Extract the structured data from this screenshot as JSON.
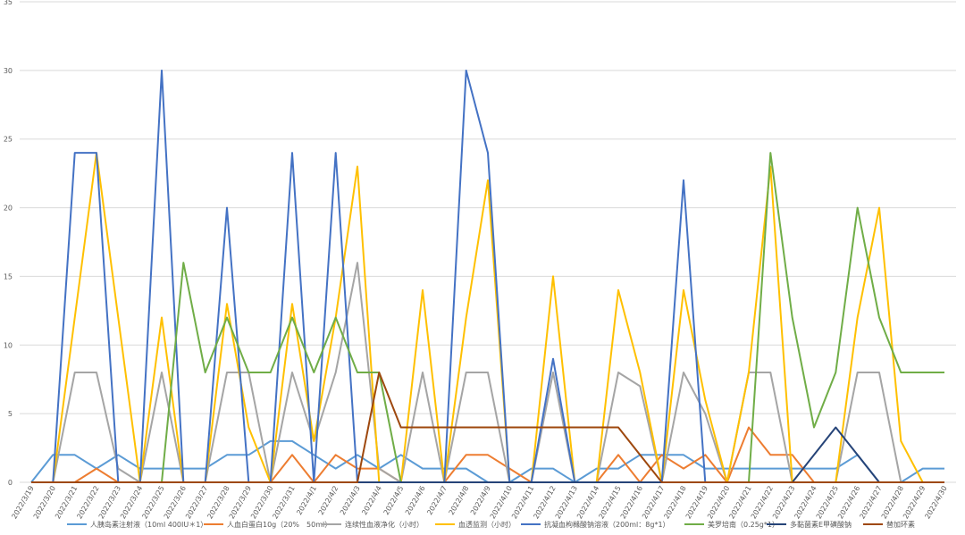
{
  "chart_data": {
    "type": "line",
    "categories": [
      "2022/3/19",
      "2022/3/20",
      "2022/3/21",
      "2022/3/22",
      "2022/3/23",
      "2022/3/24",
      "2022/3/25",
      "2022/3/26",
      "2022/3/27",
      "2022/3/28",
      "2022/3/29",
      "2022/3/30",
      "2022/3/31",
      "2022/4/1",
      "2022/4/2",
      "2022/4/3",
      "2022/4/4",
      "2022/4/5",
      "2022/4/6",
      "2022/4/7",
      "2022/4/8",
      "2022/4/9",
      "2022/4/10",
      "2022/4/11",
      "2022/4/12",
      "2022/4/13",
      "2022/4/14",
      "2022/4/15",
      "2022/4/16",
      "2022/4/17",
      "2022/4/18",
      "2022/4/19",
      "2022/4/20",
      "2022/4/21",
      "2022/4/22",
      "2022/4/23",
      "2022/4/24",
      "2022/4/25",
      "2022/4/26",
      "2022/4/27",
      "2022/4/28",
      "2022/4/29",
      "2022/4/30"
    ],
    "ylim": [
      0,
      35
    ],
    "yticks": [
      0,
      5,
      10,
      15,
      20,
      25,
      30,
      35
    ],
    "grid": true,
    "series": [
      {
        "name": "人胰岛素注射液（10ml 400IU＊1）",
        "color": "#5b9bd5",
        "values": [
          0,
          2,
          2,
          1,
          2,
          1,
          1,
          1,
          1,
          2,
          2,
          3,
          3,
          2,
          1,
          2,
          1,
          2,
          1,
          1,
          1,
          0,
          0,
          1,
          1,
          0,
          1,
          1,
          2,
          2,
          2,
          1,
          1,
          1,
          1,
          1,
          1,
          1,
          2,
          0,
          0,
          1,
          1
        ]
      },
      {
        "name": "人血白蛋白10g（20%　50ml）",
        "color": "#ed7d31",
        "values": [
          0,
          0,
          0,
          1,
          0,
          0,
          0,
          0,
          0,
          0,
          0,
          0,
          2,
          0,
          2,
          1,
          1,
          0,
          0,
          0,
          2,
          2,
          1,
          0,
          0,
          0,
          0,
          2,
          0,
          2,
          1,
          2,
          0,
          4,
          2,
          2,
          0,
          0,
          0,
          0,
          0,
          0,
          0
        ]
      },
      {
        "name": "连续性血液净化（小时）",
        "color": "#a5a5a5",
        "values": [
          0,
          0,
          8,
          8,
          1,
          0,
          8,
          0,
          0,
          8,
          8,
          0,
          8,
          3,
          8,
          16,
          1,
          0,
          8,
          0,
          8,
          8,
          0,
          0,
          8,
          0,
          0,
          8,
          7,
          0,
          8,
          5,
          0,
          8,
          8,
          0,
          0,
          0,
          8,
          8,
          0,
          0,
          0
        ]
      },
      {
        "name": "血透监测（小时）",
        "color": "#ffc000",
        "values": [
          0,
          0,
          12,
          24,
          12,
          0,
          12,
          0,
          0,
          13,
          4,
          0,
          13,
          3,
          12,
          23,
          0,
          0,
          14,
          0,
          12,
          22,
          0,
          0,
          15,
          0,
          0,
          14,
          8,
          0,
          14,
          6,
          0,
          8,
          23,
          0,
          0,
          0,
          12,
          20,
          3,
          0,
          0
        ]
      },
      {
        "name": "抗凝血枸橼酸钠溶液（200ml：8g*1）",
        "color": "#4472c4",
        "values": [
          0,
          0,
          24,
          24,
          0,
          0,
          30,
          0,
          0,
          20,
          0,
          0,
          24,
          0,
          24,
          0,
          0,
          0,
          0,
          0,
          30,
          24,
          0,
          0,
          9,
          0,
          0,
          0,
          0,
          0,
          22,
          0,
          0,
          0,
          0,
          0,
          0,
          0,
          0,
          0,
          0,
          0,
          0
        ]
      },
      {
        "name": "美罗培南（0.25g*1）",
        "color": "#70ad47",
        "values": [
          0,
          0,
          0,
          0,
          0,
          0,
          0,
          16,
          8,
          12,
          8,
          8,
          12,
          8,
          12,
          8,
          8,
          0,
          0,
          0,
          0,
          0,
          0,
          0,
          0,
          0,
          0,
          0,
          0,
          0,
          0,
          0,
          0,
          0,
          24,
          12,
          4,
          8,
          20,
          12,
          8,
          8,
          8
        ]
      },
      {
        "name": "多黏菌素E甲磺酸钠",
        "color": "#264478",
        "values": [
          0,
          0,
          0,
          0,
          0,
          0,
          0,
          0,
          0,
          0,
          0,
          0,
          0,
          0,
          0,
          0,
          0,
          0,
          0,
          0,
          0,
          0,
          0,
          0,
          0,
          0,
          0,
          0,
          0,
          0,
          0,
          0,
          0,
          0,
          0,
          0,
          2,
          4,
          2,
          0,
          0,
          0,
          0
        ]
      },
      {
        "name": "替加环素",
        "color": "#9e480e",
        "values": [
          0,
          0,
          0,
          0,
          0,
          0,
          0,
          0,
          0,
          0,
          0,
          0,
          0,
          0,
          0,
          0,
          8,
          4,
          4,
          4,
          4,
          4,
          4,
          4,
          4,
          4,
          4,
          4,
          2,
          0,
          0,
          0,
          0,
          0,
          0,
          0,
          0,
          0,
          0,
          0,
          0,
          0,
          0
        ]
      }
    ]
  }
}
